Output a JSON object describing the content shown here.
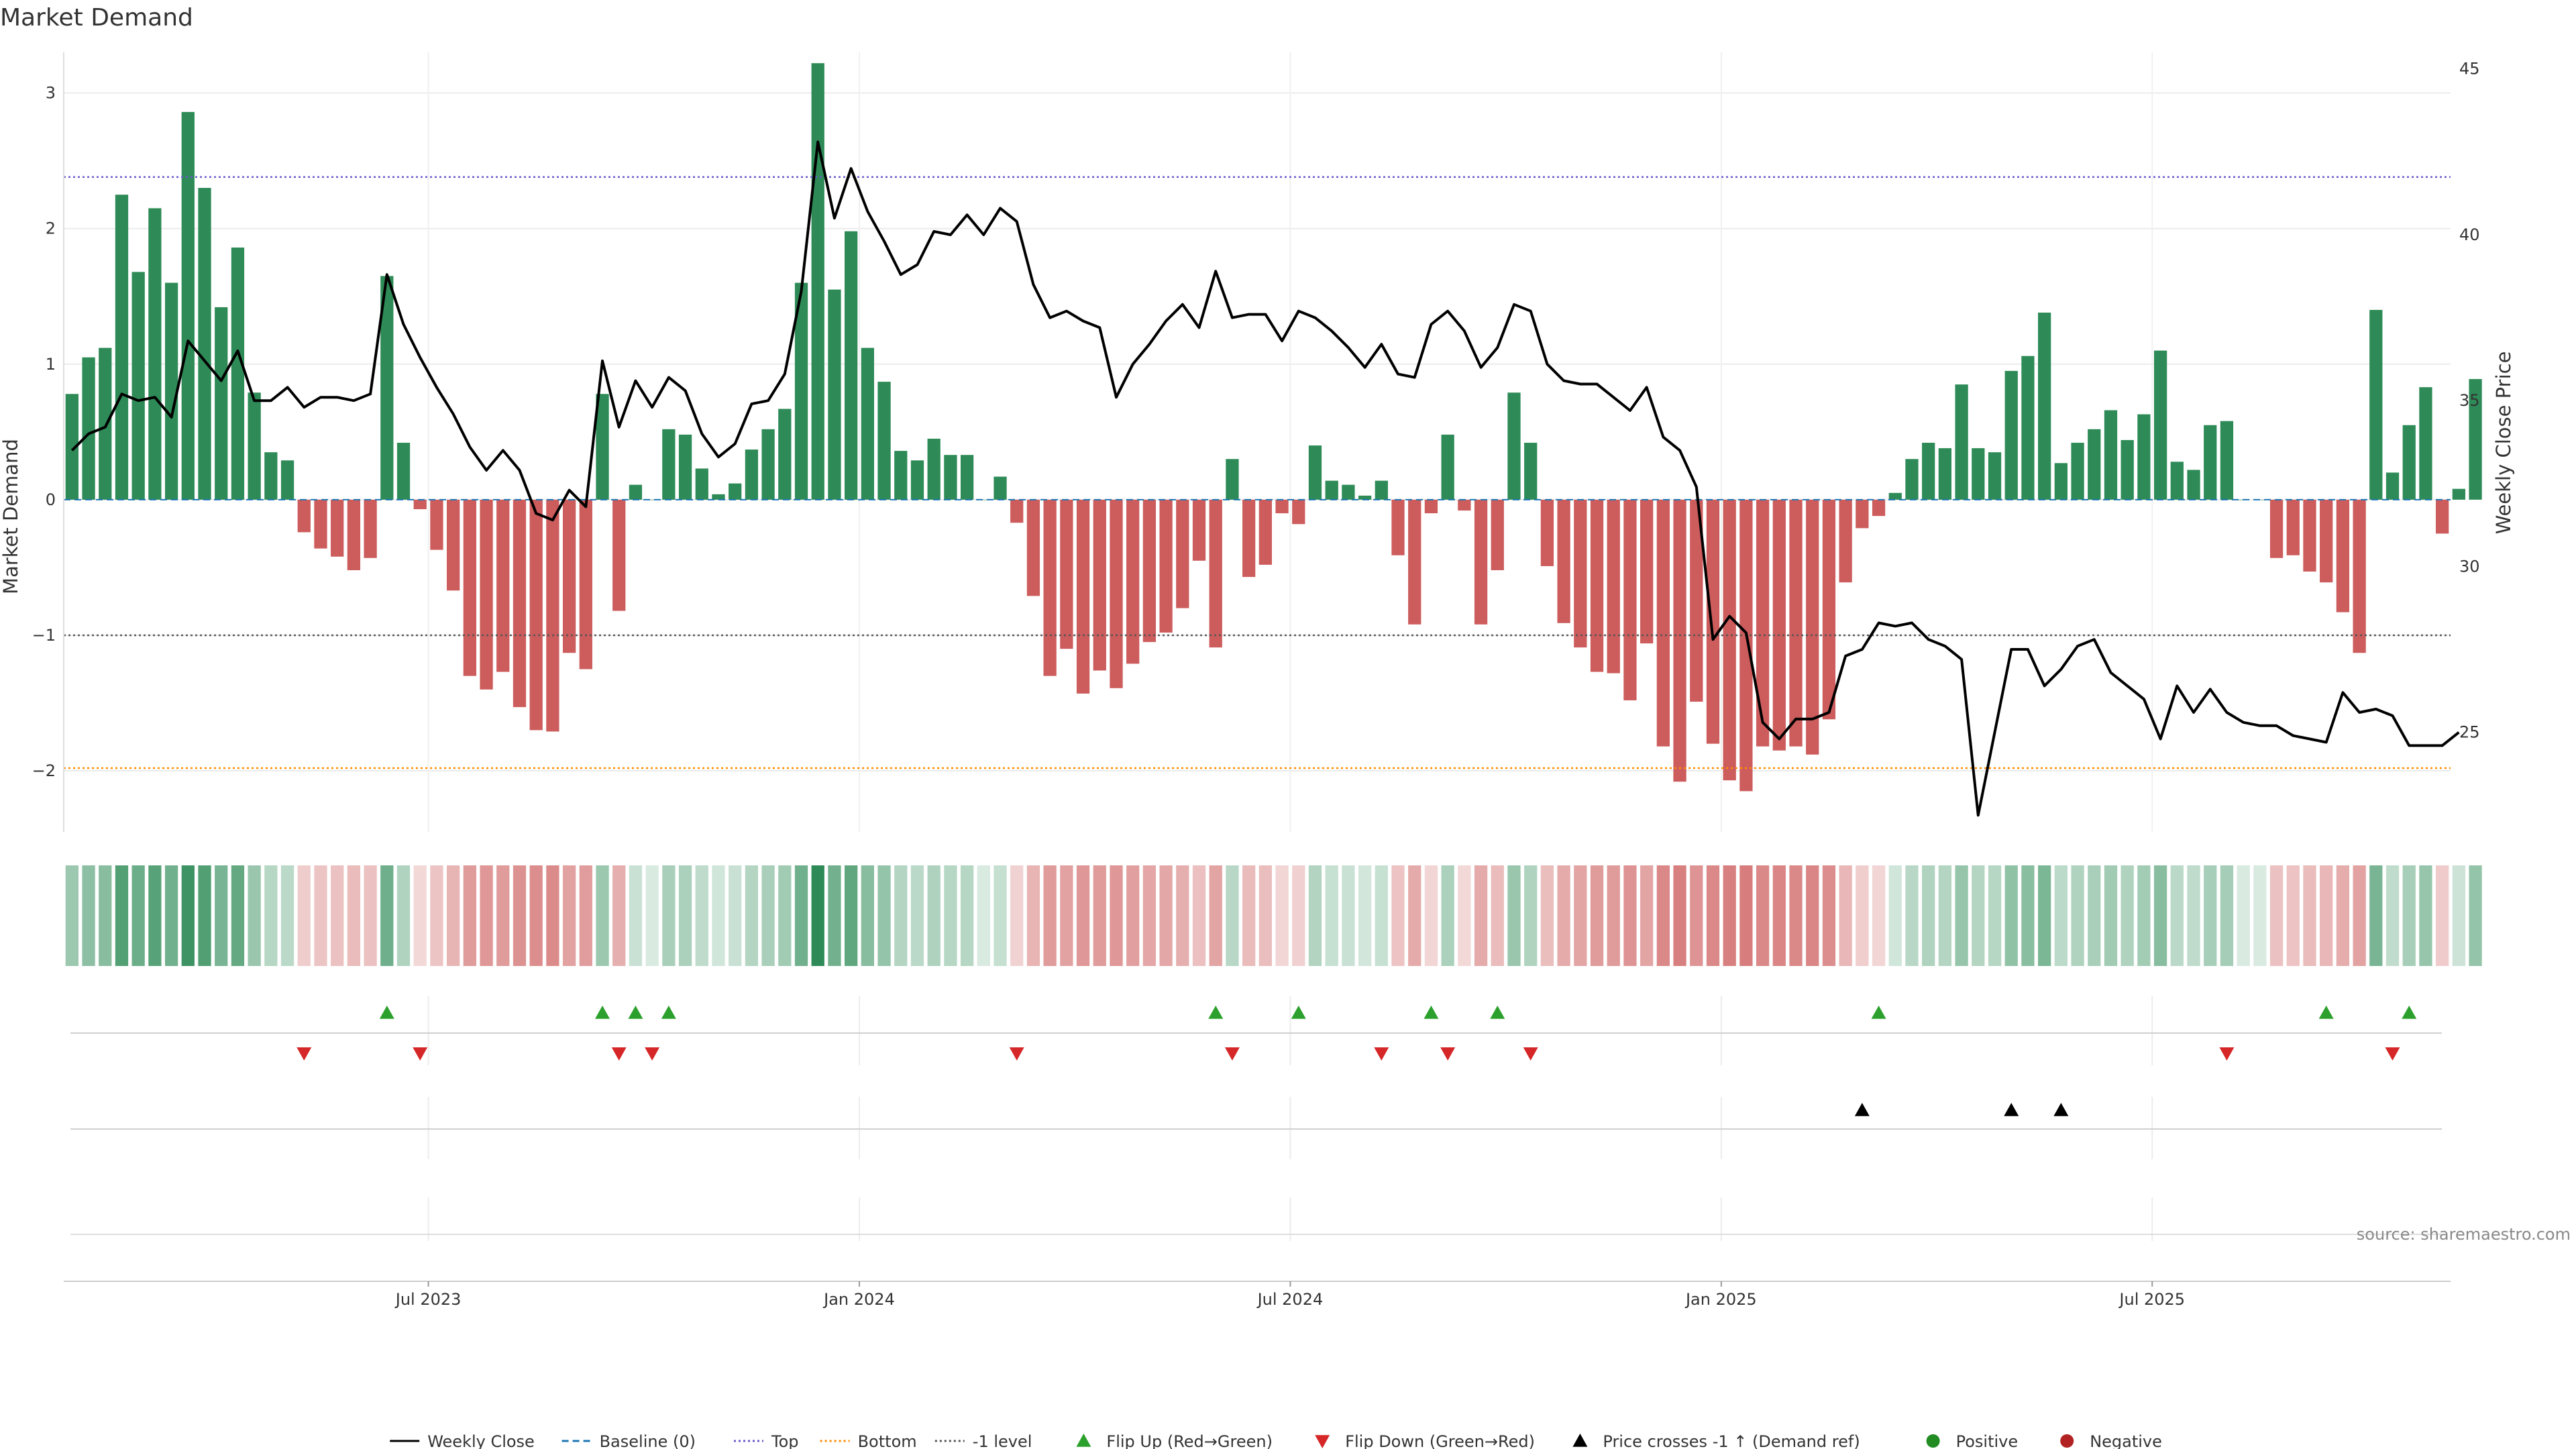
{
  "chart_data": {
    "type": "bar",
    "title": "Market Demand",
    "ylabel": "Market Demand",
    "y2label": "Weekly Close Price",
    "ylim": [
      -2.45,
      3.3
    ],
    "y2lim": [
      22,
      45.5
    ],
    "yticks": [
      3,
      2,
      1,
      0,
      -1,
      -2
    ],
    "yticklabels": [
      "3",
      "2",
      "1",
      "0",
      "−1",
      "−2"
    ],
    "y2ticks": [
      45,
      40,
      35,
      30,
      25
    ],
    "xticks": [
      22,
      48,
      74,
      100,
      126
    ],
    "xticklabels": [
      "Jul 2023",
      "Jan 2024",
      "Jul 2024",
      "Jan 2025",
      "Jul 2025"
    ],
    "n_weeks": 144,
    "reference_lines": {
      "top": 2.38,
      "minus_one": -1.0,
      "bottom": -1.98
    },
    "demand": [
      0.78,
      1.05,
      1.12,
      2.25,
      1.68,
      2.15,
      1.6,
      2.86,
      2.3,
      1.42,
      1.86,
      0.79,
      0.35,
      0.29,
      -0.24,
      -0.36,
      -0.42,
      -0.52,
      -0.43,
      1.65,
      0.42,
      -0.07,
      -0.37,
      -0.67,
      -1.3,
      -1.4,
      -1.27,
      -1.53,
      -1.7,
      -1.71,
      -1.13,
      -1.25,
      0.78,
      -0.82,
      0.11,
      0.0,
      0.52,
      0.48,
      0.23,
      0.04,
      0.12,
      0.37,
      0.52,
      0.67,
      1.6,
      3.22,
      1.55,
      1.98,
      1.12,
      0.87,
      0.36,
      0.29,
      0.45,
      0.33,
      0.33,
      0.0,
      0.17,
      -0.17,
      -0.71,
      -1.3,
      -1.1,
      -1.43,
      -1.26,
      -1.39,
      -1.21,
      -1.05,
      -0.98,
      -0.8,
      -0.45,
      -1.09,
      0.3,
      -0.57,
      -0.48,
      -0.1,
      -0.18,
      0.4,
      0.14,
      0.11,
      0.03,
      0.14,
      -0.41,
      -0.92,
      -0.1,
      0.48,
      -0.08,
      -0.92,
      -0.52,
      0.79,
      0.42,
      -0.49,
      -0.91,
      -1.09,
      -1.27,
      -1.28,
      -1.48,
      -1.06,
      -1.82,
      -2.08,
      -1.49,
      -1.8,
      -2.07,
      -2.15,
      -1.82,
      -1.85,
      -1.82,
      -1.88,
      -1.62,
      -0.61,
      -0.21,
      -0.12,
      0.05,
      0.3,
      0.42,
      0.38,
      0.85,
      0.38,
      0.35,
      0.95,
      1.06,
      1.38,
      0.27,
      0.42,
      0.52,
      0.66,
      0.44,
      0.63,
      1.1,
      0.28,
      0.22,
      0.55,
      0.58,
      0.0,
      0.0,
      -0.43,
      -0.41,
      -0.53,
      -0.61,
      -0.83,
      -1.13,
      1.4,
      0.2,
      0.55,
      0.83,
      -0.25,
      0.08,
      0.89
    ],
    "series": [
      {
        "name": "Weekly Close",
        "values": [
          33.5,
          34.0,
          34.2,
          35.2,
          35.0,
          35.1,
          34.5,
          36.8,
          36.2,
          35.6,
          36.5,
          35.0,
          35.0,
          35.4,
          34.8,
          35.1,
          35.1,
          35.0,
          35.2,
          38.8,
          37.3,
          36.3,
          35.4,
          34.6,
          33.6,
          32.9,
          33.5,
          32.9,
          31.6,
          31.4,
          32.3,
          31.8,
          36.2,
          34.2,
          35.6,
          34.8,
          35.7,
          35.3,
          34.0,
          33.3,
          33.7,
          34.9,
          35.0,
          35.8,
          38.3,
          42.8,
          40.5,
          42.0,
          40.7,
          39.8,
          38.8,
          39.1,
          40.1,
          40.0,
          40.6,
          40.0,
          40.8,
          40.4,
          38.5,
          37.5,
          37.7,
          37.4,
          37.2,
          35.1,
          36.1,
          36.7,
          37.4,
          37.9,
          37.2,
          38.9,
          37.5,
          37.6,
          37.6,
          36.8,
          37.7,
          37.5,
          37.1,
          36.6,
          36.0,
          36.7,
          35.8,
          35.7,
          37.3,
          37.7,
          37.1,
          36.0,
          36.6,
          37.9,
          37.7,
          36.1,
          35.6,
          35.5,
          35.5,
          35.1,
          34.7,
          35.4,
          33.9,
          33.5,
          32.4,
          27.8,
          28.5,
          28.0,
          25.3,
          24.8,
          25.4,
          25.4,
          25.6,
          27.3,
          27.5,
          28.3,
          28.2,
          28.3,
          27.8,
          27.6,
          27.2,
          22.5,
          25.0,
          27.5,
          27.5,
          26.4,
          26.9,
          27.6,
          27.8,
          26.8,
          26.4,
          26.0,
          24.8,
          26.4,
          25.6,
          26.3,
          25.6,
          25.3,
          25.2,
          25.2,
          24.9,
          24.8,
          24.7,
          26.2,
          25.6,
          25.7,
          25.5,
          24.6,
          24.6,
          24.6,
          25.0
        ]
      }
    ],
    "flip_up_weeks": [
      19,
      32,
      34,
      36,
      69,
      74,
      82,
      86,
      109,
      136,
      141
    ],
    "flip_down_weeks": [
      14,
      21,
      33,
      35,
      57,
      70,
      79,
      83,
      88,
      130,
      140
    ],
    "price_cross_weeks": [
      108,
      117,
      120
    ],
    "colors": {
      "positive_bar": "#2e8b57",
      "negative_bar": "#cd5c5c",
      "price_line": "#000000",
      "baseline": "#1f77b4",
      "top": "#6a5acd",
      "bottom": "#ff8c00",
      "minus_one": "#555555",
      "flip_up": "#2ca02c",
      "flip_down": "#d62728",
      "price_cross": "#000000",
      "dot_positive": "#228b22",
      "dot_negative": "#b22222"
    },
    "legend": [
      {
        "label": "Weekly Close",
        "kind": "line",
        "color": "#000000",
        "dash": ""
      },
      {
        "label": "Baseline (0)",
        "kind": "line",
        "color": "#1f77b4",
        "dash": "10,6"
      },
      {
        "label": "Top",
        "kind": "line",
        "color": "#6a5acd",
        "dash": "3,4"
      },
      {
        "label": "Bottom",
        "kind": "line",
        "color": "#ff8c00",
        "dash": "3,4"
      },
      {
        "label": "-1 level",
        "kind": "line",
        "color": "#555555",
        "dash": "3,4"
      },
      {
        "label": "Flip Up (Red→Green)",
        "kind": "tri-up",
        "color": "#2ca02c"
      },
      {
        "label": "Flip Down (Green→Red)",
        "kind": "tri-down",
        "color": "#d62728"
      },
      {
        "label": "Price crosses -1 ↑ (Demand ref)",
        "kind": "tri-up",
        "color": "#000000"
      },
      {
        "label": "Positive",
        "kind": "dot",
        "color": "#228b22"
      },
      {
        "label": "Negative",
        "kind": "dot",
        "color": "#b22222"
      }
    ],
    "legend_placement": "bottom",
    "source": "source: sharemaestro.com"
  }
}
